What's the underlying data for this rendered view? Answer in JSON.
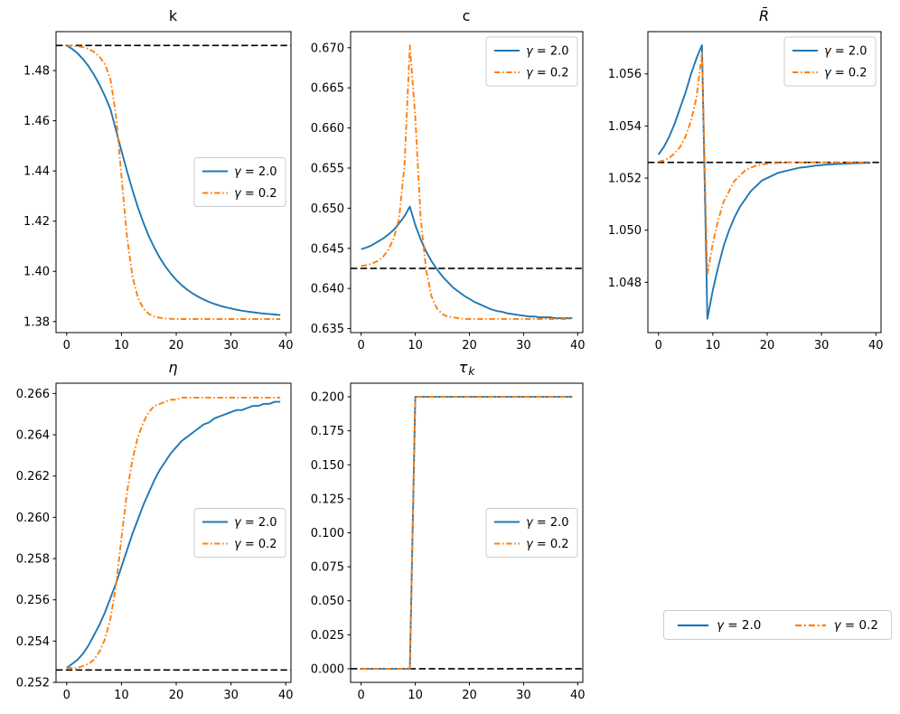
{
  "figure": {
    "background": "#ffffff",
    "description": "2x3 grid of line subplots: k, c, R-bar (top row); eta, tau_k (bottom row); shared legend box bottom-right"
  },
  "palette": {
    "series_blue": "#1f77b4",
    "series_orange": "#ff7f0e",
    "steady_state_line": "#000000",
    "legend_border": "#cccccc",
    "text": "#000000"
  },
  "standalone_legend": {
    "entries": [
      {
        "label": "γ = 2.0",
        "line": "solid",
        "color": "#1f77b4"
      },
      {
        "label": "γ = 0.2",
        "line": "dashdot",
        "color": "#ff7f0e"
      }
    ]
  },
  "chart_data": {
    "type": "line",
    "grid": false,
    "x_label": "",
    "x_shared": [
      0,
      1,
      2,
      3,
      4,
      5,
      6,
      7,
      8,
      9,
      10,
      11,
      12,
      13,
      14,
      15,
      16,
      17,
      18,
      19,
      20,
      21,
      22,
      23,
      24,
      25,
      26,
      27,
      28,
      29,
      30,
      31,
      32,
      33,
      34,
      35,
      36,
      37,
      38,
      39
    ],
    "xlim": [
      -1.95,
      40.95
    ],
    "xticks": [
      0,
      10,
      20,
      30,
      40
    ],
    "xtick_labels": [
      "0",
      "10",
      "20",
      "30",
      "40"
    ],
    "series_names": [
      "γ = 2.0",
      "γ = 0.2"
    ],
    "plots": [
      {
        "id": "k",
        "title": "k",
        "title_sub": "",
        "ylim": [
          1.3756,
          1.4955
        ],
        "yticks": [
          1.38,
          1.4,
          1.42,
          1.44,
          1.46,
          1.48
        ],
        "ytick_labels": [
          "1.38",
          "1.40",
          "1.42",
          "1.44",
          "1.46",
          "1.48"
        ],
        "steady_state": 1.49,
        "legend_loc": "center right",
        "series": [
          {
            "name": "γ = 2.0",
            "line": "solid",
            "color": "#1f77b4",
            "values": [
              1.49,
              1.4886,
              1.4868,
              1.4845,
              1.4817,
              1.4783,
              1.4743,
              1.4697,
              1.4645,
              1.4563,
              1.448,
              1.44,
              1.4324,
              1.4255,
              1.4194,
              1.414,
              1.4094,
              1.4054,
              1.402,
              1.3991,
              1.3966,
              1.3945,
              1.3927,
              1.3912,
              1.3899,
              1.3888,
              1.3878,
              1.387,
              1.3863,
              1.3857,
              1.3852,
              1.3847,
              1.3843,
              1.384,
              1.3837,
              1.3834,
              1.3832,
              1.383,
              1.3828,
              1.3826
            ]
          },
          {
            "name": "γ = 0.2",
            "line": "dashdot",
            "color": "#ff7f0e",
            "values": [
              1.49,
              1.4899,
              1.4897,
              1.4893,
              1.4886,
              1.4874,
              1.4855,
              1.4824,
              1.4765,
              1.462,
              1.438,
              1.414,
              1.398,
              1.3895,
              1.3852,
              1.383,
              1.382,
              1.3815,
              1.3812,
              1.3811,
              1.381,
              1.381,
              1.381,
              1.381,
              1.381,
              1.381,
              1.381,
              1.381,
              1.381,
              1.381,
              1.381,
              1.381,
              1.381,
              1.381,
              1.381,
              1.381,
              1.381,
              1.381,
              1.381,
              1.381
            ]
          }
        ]
      },
      {
        "id": "c",
        "title": "c",
        "title_sub": "",
        "ylim": [
          0.6345,
          0.672
        ],
        "yticks": [
          0.635,
          0.64,
          0.645,
          0.65,
          0.655,
          0.66,
          0.665,
          0.67
        ],
        "ytick_labels": [
          "0.635",
          "0.640",
          "0.645",
          "0.650",
          "0.655",
          "0.660",
          "0.665",
          "0.670"
        ],
        "steady_state": 0.6425,
        "legend_loc": "upper right",
        "series": [
          {
            "name": "γ = 2.0",
            "line": "solid",
            "color": "#1f77b4",
            "values": [
              0.6449,
              0.6451,
              0.6454,
              0.6458,
              0.6462,
              0.6467,
              0.6473,
              0.6481,
              0.649,
              0.6502,
              0.6479,
              0.6461,
              0.6446,
              0.6434,
              0.6424,
              0.6415,
              0.6408,
              0.6401,
              0.6396,
              0.6391,
              0.6387,
              0.6383,
              0.638,
              0.6377,
              0.6374,
              0.6372,
              0.6371,
              0.6369,
              0.6368,
              0.6367,
              0.6366,
              0.6365,
              0.6365,
              0.6364,
              0.6364,
              0.6364,
              0.6363,
              0.6363,
              0.6363,
              0.6363
            ]
          },
          {
            "name": "γ = 0.2",
            "line": "dashdot",
            "color": "#ff7f0e",
            "values": [
              0.6428,
              0.6429,
              0.6431,
              0.6434,
              0.6439,
              0.6448,
              0.6462,
              0.6487,
              0.6553,
              0.6703,
              0.6613,
              0.6487,
              0.6423,
              0.639,
              0.6375,
              0.6368,
              0.6365,
              0.6364,
              0.6363,
              0.6362,
              0.6362,
              0.6362,
              0.6362,
              0.6362,
              0.6362,
              0.6362,
              0.6362,
              0.6362,
              0.6362,
              0.6362,
              0.6362,
              0.6362,
              0.6362,
              0.6362,
              0.6362,
              0.6362,
              0.6362,
              0.6362,
              0.6362,
              0.6362
            ]
          }
        ]
      },
      {
        "id": "R_bar",
        "title": "R̄",
        "title_sub": "",
        "ylim": [
          1.04607,
          1.05762
        ],
        "yticks": [
          1.048,
          1.05,
          1.052,
          1.054,
          1.056
        ],
        "ytick_labels": [
          "1.048",
          "1.050",
          "1.052",
          "1.054",
          "1.056"
        ],
        "steady_state": 1.0526,
        "legend_loc": "upper right",
        "series": [
          {
            "name": "γ = 2.0",
            "line": "solid",
            "color": "#1f77b4",
            "values": [
              1.0529,
              1.0532,
              1.0536,
              1.0541,
              1.0547,
              1.0553,
              1.056,
              1.0566,
              1.0571,
              1.0466,
              1.0477,
              1.0486,
              1.0494,
              1.05,
              1.0505,
              1.0509,
              1.0512,
              1.0515,
              1.0517,
              1.0519,
              1.052,
              1.0521,
              1.0522,
              1.05225,
              1.0523,
              1.05235,
              1.0524,
              1.05242,
              1.05245,
              1.05248,
              1.0525,
              1.05252,
              1.05253,
              1.05254,
              1.05255,
              1.05256,
              1.05257,
              1.05257,
              1.05258,
              1.05258
            ]
          },
          {
            "name": "γ = 0.2",
            "line": "dashdot",
            "color": "#ff7f0e",
            "values": [
              1.05263,
              1.05268,
              1.05278,
              1.05295,
              1.0532,
              1.0536,
              1.0542,
              1.0551,
              1.0568,
              1.0483,
              1.0495,
              1.0504,
              1.0511,
              1.0515,
              1.0519,
              1.0521,
              1.0523,
              1.0524,
              1.05248,
              1.05252,
              1.05255,
              1.05257,
              1.05258,
              1.05259,
              1.0526,
              1.0526,
              1.0526,
              1.0526,
              1.0526,
              1.0526,
              1.0526,
              1.0526,
              1.0526,
              1.0526,
              1.0526,
              1.0526,
              1.0526,
              1.0526,
              1.0526,
              1.0526
            ]
          }
        ]
      },
      {
        "id": "eta",
        "title": "η",
        "title_sub": "",
        "ylim": [
          0.252,
          0.2665
        ],
        "yticks": [
          0.252,
          0.254,
          0.256,
          0.258,
          0.26,
          0.262,
          0.264,
          0.266
        ],
        "ytick_labels": [
          "0.252",
          "0.254",
          "0.256",
          "0.258",
          "0.260",
          "0.262",
          "0.264",
          "0.266"
        ],
        "steady_state": 0.2526,
        "legend_loc": "center right",
        "series": [
          {
            "name": "γ = 2.0",
            "line": "solid",
            "color": "#1f77b4",
            "values": [
              0.2527,
              0.2529,
              0.2531,
              0.2534,
              0.2538,
              0.2543,
              0.2548,
              0.2554,
              0.2561,
              0.2568,
              0.2576,
              0.2584,
              0.2592,
              0.2599,
              0.2606,
              0.2612,
              0.2618,
              0.2623,
              0.2627,
              0.2631,
              0.2634,
              0.2637,
              0.2639,
              0.2641,
              0.2643,
              0.2645,
              0.2646,
              0.2648,
              0.2649,
              0.265,
              0.2651,
              0.2652,
              0.2652,
              0.2653,
              0.2654,
              0.2654,
              0.2655,
              0.2655,
              0.2656,
              0.2656
            ]
          },
          {
            "name": "γ = 0.2",
            "line": "dashdot",
            "color": "#ff7f0e",
            "values": [
              0.2527,
              0.2527,
              0.2527,
              0.2528,
              0.2529,
              0.2531,
              0.2535,
              0.2541,
              0.2551,
              0.2567,
              0.259,
              0.2612,
              0.2628,
              0.2639,
              0.2646,
              0.2651,
              0.2654,
              0.2655,
              0.2656,
              0.2657,
              0.2657,
              0.2658,
              0.2658,
              0.2658,
              0.2658,
              0.2658,
              0.2658,
              0.2658,
              0.2658,
              0.2658,
              0.2658,
              0.2658,
              0.2658,
              0.2658,
              0.2658,
              0.2658,
              0.2658,
              0.2658,
              0.2658,
              0.2658
            ]
          }
        ]
      },
      {
        "id": "tau_k",
        "title": "τ",
        "title_sub": "k",
        "ylim": [
          -0.01,
          0.21
        ],
        "yticks": [
          0.0,
          0.025,
          0.05,
          0.075,
          0.1,
          0.125,
          0.15,
          0.175,
          0.2
        ],
        "ytick_labels": [
          "0.000",
          "0.025",
          "0.050",
          "0.075",
          "0.100",
          "0.125",
          "0.150",
          "0.175",
          "0.200"
        ],
        "steady_state": 0.0,
        "legend_loc": "center right",
        "series": [
          {
            "name": "γ = 2.0",
            "line": "solid",
            "color": "#1f77b4",
            "values": [
              0,
              0,
              0,
              0,
              0,
              0,
              0,
              0,
              0,
              0,
              0.2,
              0.2,
              0.2,
              0.2,
              0.2,
              0.2,
              0.2,
              0.2,
              0.2,
              0.2,
              0.2,
              0.2,
              0.2,
              0.2,
              0.2,
              0.2,
              0.2,
              0.2,
              0.2,
              0.2,
              0.2,
              0.2,
              0.2,
              0.2,
              0.2,
              0.2,
              0.2,
              0.2,
              0.2,
              0.2
            ]
          },
          {
            "name": "γ = 0.2",
            "line": "dashdot",
            "color": "#ff7f0e",
            "values": [
              0,
              0,
              0,
              0,
              0,
              0,
              0,
              0,
              0,
              0,
              0.2,
              0.2,
              0.2,
              0.2,
              0.2,
              0.2,
              0.2,
              0.2,
              0.2,
              0.2,
              0.2,
              0.2,
              0.2,
              0.2,
              0.2,
              0.2,
              0.2,
              0.2,
              0.2,
              0.2,
              0.2,
              0.2,
              0.2,
              0.2,
              0.2,
              0.2,
              0.2,
              0.2,
              0.2,
              0.2
            ]
          }
        ]
      }
    ]
  }
}
